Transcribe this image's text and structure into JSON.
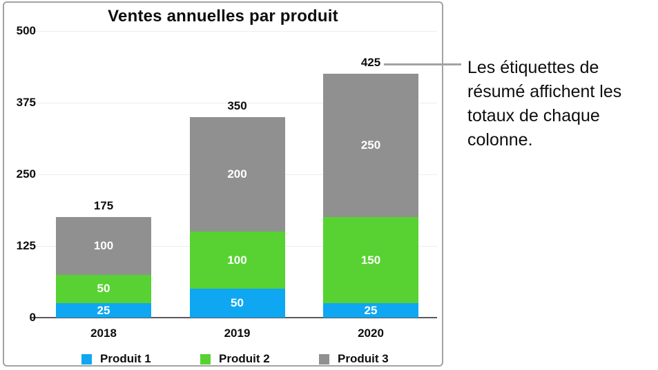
{
  "chart_data": {
    "type": "bar",
    "stacked": true,
    "title": "Ventes annuelles par produit",
    "categories": [
      "2018",
      "2019",
      "2020"
    ],
    "series": [
      {
        "name": "Produit 1",
        "color": "#0fa7f2",
        "values": [
          25,
          50,
          25
        ]
      },
      {
        "name": "Produit 2",
        "color": "#57d232",
        "values": [
          50,
          100,
          150
        ]
      },
      {
        "name": "Produit 3",
        "color": "#909090",
        "values": [
          100,
          200,
          250
        ]
      }
    ],
    "totals": [
      175,
      350,
      425
    ],
    "segment_labels": [
      [
        "25",
        "50",
        "100"
      ],
      [
        "50",
        "100",
        "200"
      ],
      [
        "25",
        "150",
        "250"
      ]
    ],
    "ylim": [
      0,
      500
    ],
    "y_ticks": [
      0,
      125,
      250,
      375,
      500
    ],
    "grid": true,
    "legend_position": "bottom",
    "segment_label_color": "#ffffff"
  },
  "annotation": {
    "text": "Les étiquettes de résumé affichent les totaux de chaque colonne.",
    "attached_to_label": "425"
  },
  "colors": {
    "panel_border": "#a2a2a2",
    "leader_line": "#a2a2a2",
    "gridline": "#ececec",
    "axis_line": "#58585a",
    "text": "#0d0d0d"
  }
}
